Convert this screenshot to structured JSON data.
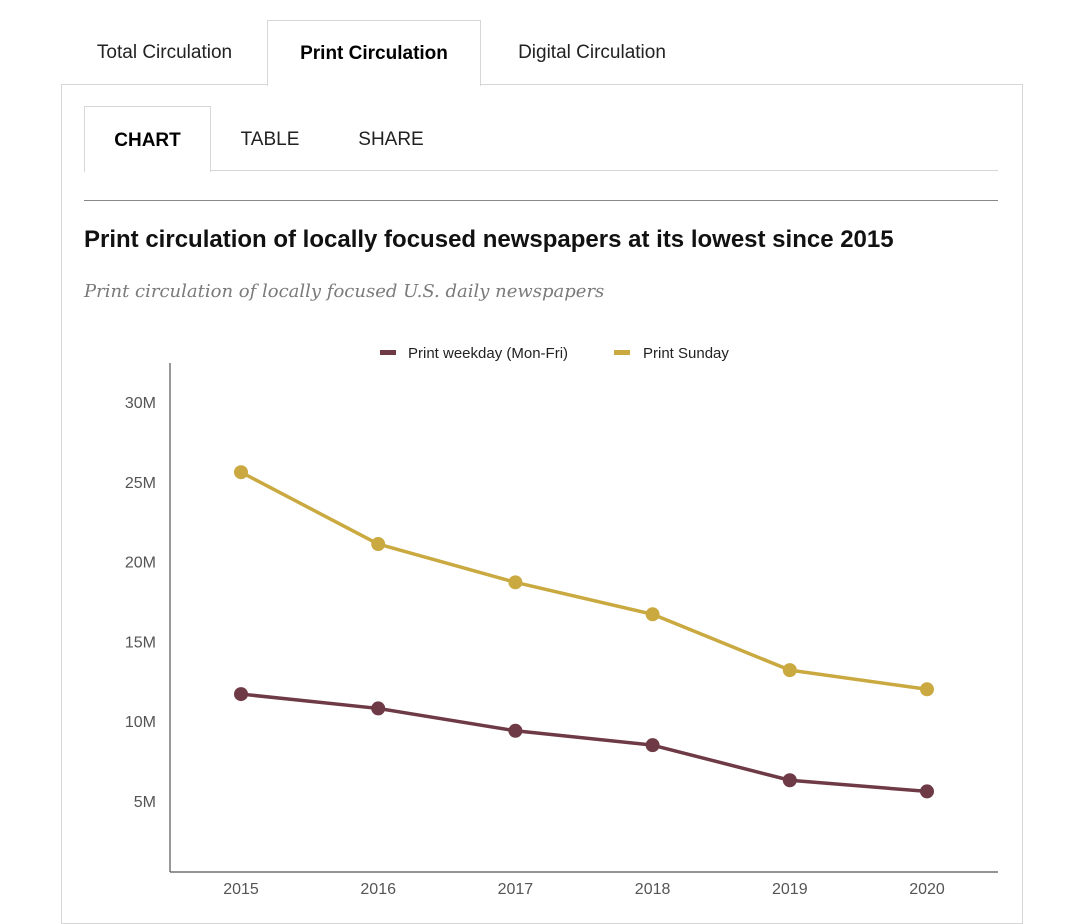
{
  "top_tabs": [
    {
      "label": "Total Circulation",
      "active": false
    },
    {
      "label": "Print Circulation",
      "active": true
    },
    {
      "label": "Digital Circulation",
      "active": false
    }
  ],
  "sub_tabs": [
    {
      "label": "CHART",
      "active": true
    },
    {
      "label": "TABLE",
      "active": false
    },
    {
      "label": "SHARE",
      "active": false
    }
  ],
  "colors": {
    "weekday": "#6e3a45",
    "sunday": "#c9a940",
    "axis": "#555555"
  },
  "chart_data": {
    "type": "line",
    "title": "Print circulation of locally focused newspapers at its lowest since 2015",
    "subtitle": "Print circulation of locally focused U.S. daily newspapers",
    "x": [
      "2015",
      "2016",
      "2017",
      "2018",
      "2019",
      "2020"
    ],
    "xlabel": "",
    "ylabel": "",
    "ylim": [
      0,
      32000000
    ],
    "yticks": [
      5000000,
      10000000,
      15000000,
      20000000,
      25000000,
      30000000
    ],
    "ytick_labels": [
      "5M",
      "10M",
      "15M",
      "20M",
      "25M",
      "30M"
    ],
    "grid": false,
    "legend_position": "top-center",
    "series": [
      {
        "name": "Print weekday (Mon-Fri)",
        "color_key": "weekday",
        "values": [
          11700000,
          10800000,
          9400000,
          8500000,
          6300000,
          5600000
        ]
      },
      {
        "name": "Print Sunday",
        "color_key": "sunday",
        "values": [
          25600000,
          21100000,
          18700000,
          16700000,
          13200000,
          12000000
        ]
      }
    ]
  }
}
